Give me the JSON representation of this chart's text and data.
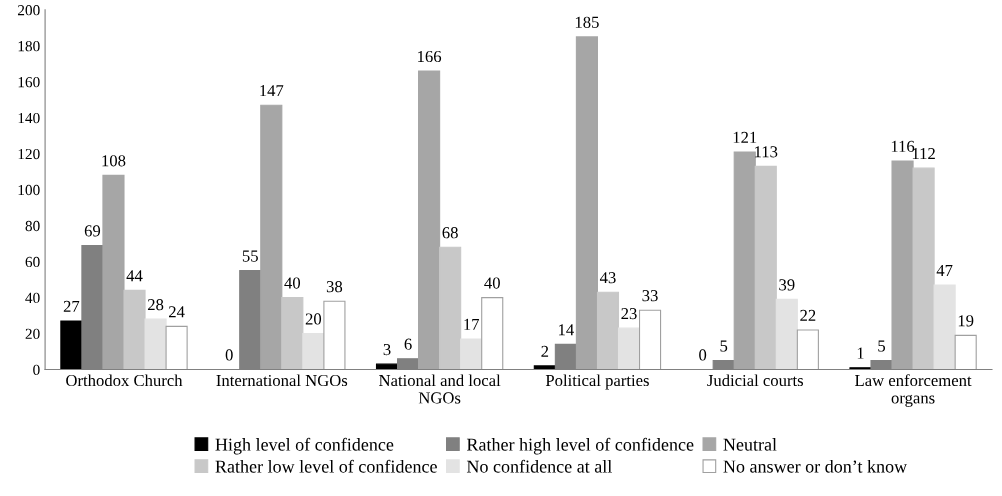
{
  "chart_data": {
    "type": "bar",
    "categories": [
      "Orthodox Church",
      "International NGOs",
      "National and local NGOs",
      "Political parties",
      "Judicial courts",
      "Law enforcement organs"
    ],
    "series": [
      {
        "name": "High level of confidence",
        "color": "#000000",
        "values": [
          27,
          0,
          3,
          2,
          0,
          1
        ]
      },
      {
        "name": "Rather high level of confidence",
        "color": "#808080",
        "values": [
          69,
          55,
          6,
          14,
          5,
          5
        ]
      },
      {
        "name": "Neutral",
        "color": "#a6a6a6",
        "values": [
          108,
          147,
          166,
          185,
          121,
          116
        ]
      },
      {
        "name": "Rather low level of confidence",
        "color": "#c8c8c8",
        "values": [
          44,
          40,
          68,
          43,
          113,
          112
        ]
      },
      {
        "name": "No confidence at all",
        "color": "#e3e3e3",
        "values": [
          28,
          20,
          17,
          23,
          39,
          47
        ]
      },
      {
        "name": "No answer or don’t know",
        "color": "#ffffff",
        "values": [
          24,
          38,
          40,
          33,
          22,
          19
        ]
      }
    ],
    "ylim": [
      0,
      200
    ],
    "yticks": [
      0,
      20,
      40,
      60,
      80,
      100,
      120,
      140,
      160,
      180,
      200
    ],
    "data_labels": true,
    "grid": false,
    "legend": "bottom"
  }
}
